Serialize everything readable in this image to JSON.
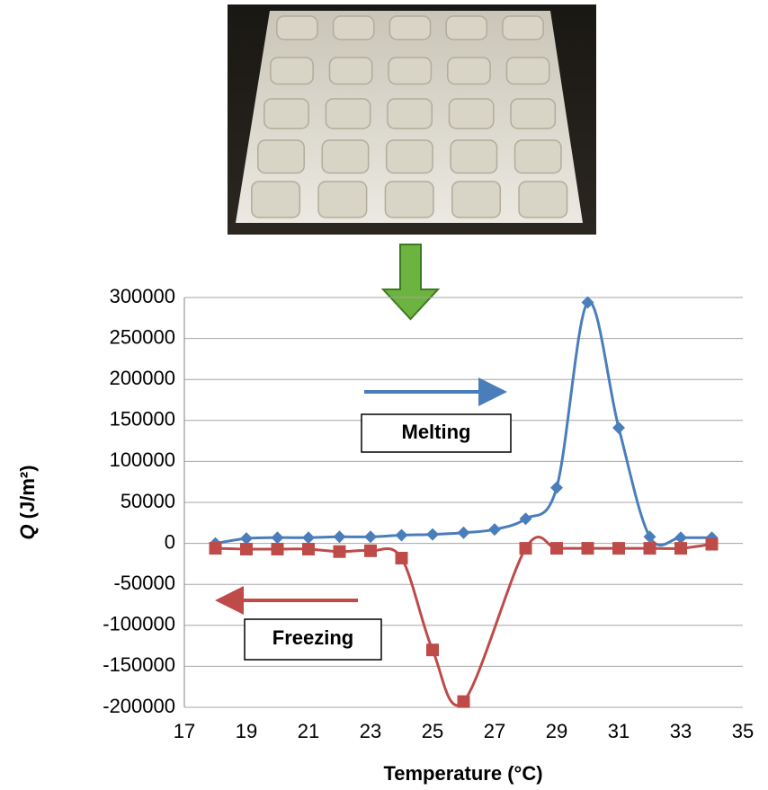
{
  "chart_data": {
    "type": "line",
    "xlabel": "Temperature (°C)",
    "ylabel_symbol": "Q",
    "ylabel_unit": "(J/m²)",
    "annotations": [
      "Melting",
      "Freezing"
    ],
    "xlim": [
      17,
      35
    ],
    "xticks": [
      17,
      19,
      21,
      23,
      25,
      27,
      29,
      31,
      33,
      35
    ],
    "ylim": [
      -200000,
      300000
    ],
    "yticks": [
      -200000,
      -150000,
      -100000,
      -50000,
      0,
      50000,
      100000,
      150000,
      200000,
      250000,
      300000
    ],
    "grid": true,
    "series": [
      {
        "name": "Melting",
        "color": "#4a7ebb",
        "marker": "diamond",
        "x": [
          18,
          19,
          20,
          21,
          22,
          23,
          24,
          25,
          26,
          27,
          28,
          29,
          30,
          31,
          32,
          33,
          34
        ],
        "values": [
          0,
          6000,
          7000,
          7000,
          8000,
          8000,
          10000,
          11000,
          13000,
          17000,
          30000,
          68000,
          294000,
          141000,
          8000,
          7000,
          7000
        ]
      },
      {
        "name": "Freezing",
        "color": "#be4b48",
        "marker": "square",
        "x": [
          18,
          19,
          20,
          21,
          22,
          23,
          24,
          25,
          26,
          28,
          29,
          30,
          31,
          32,
          33,
          34
        ],
        "values": [
          -6000,
          -7000,
          -7000,
          -7000,
          -10000,
          -9000,
          -18000,
          -130000,
          -193000,
          -6000,
          -6000,
          -6000,
          -6000,
          -6000,
          -6000,
          -1000
        ]
      }
    ]
  }
}
